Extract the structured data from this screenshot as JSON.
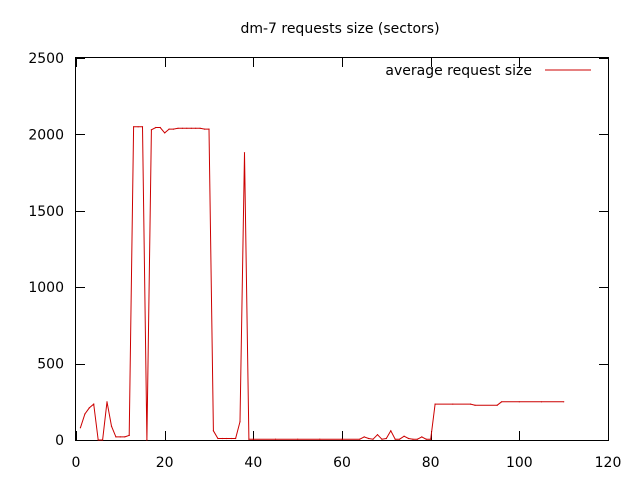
{
  "chart_data": {
    "type": "line",
    "title": "dm-7 requests size (sectors)",
    "xlabel": "",
    "ylabel": "",
    "xlim": [
      0,
      120
    ],
    "ylim": [
      0,
      2500
    ],
    "x_ticks": [
      0,
      20,
      40,
      60,
      80,
      100,
      120
    ],
    "y_ticks": [
      0,
      500,
      1000,
      1500,
      2000,
      2500
    ],
    "grid": false,
    "legend_position": "top-right",
    "series": [
      {
        "name": "average request size",
        "color": "#cc0000",
        "points": [
          [
            1,
            80
          ],
          [
            2,
            170
          ],
          [
            3,
            210
          ],
          [
            4,
            235
          ],
          [
            5,
            0
          ],
          [
            6,
            0
          ],
          [
            7,
            250
          ],
          [
            8,
            90
          ],
          [
            9,
            20
          ],
          [
            10,
            20
          ],
          [
            11,
            20
          ],
          [
            12,
            30
          ],
          [
            13,
            2050
          ],
          [
            14,
            2050
          ],
          [
            15,
            2050
          ],
          [
            16,
            0
          ],
          [
            17,
            2030
          ],
          [
            18,
            2045
          ],
          [
            19,
            2045
          ],
          [
            20,
            2010
          ],
          [
            21,
            2035
          ],
          [
            22,
            2035
          ],
          [
            23,
            2040
          ],
          [
            24,
            2040
          ],
          [
            25,
            2040
          ],
          [
            26,
            2040
          ],
          [
            27,
            2040
          ],
          [
            28,
            2040
          ],
          [
            29,
            2035
          ],
          [
            30,
            2035
          ],
          [
            31,
            60
          ],
          [
            32,
            10
          ],
          [
            33,
            10
          ],
          [
            34,
            10
          ],
          [
            35,
            10
          ],
          [
            36,
            10
          ],
          [
            37,
            120
          ],
          [
            38,
            1880
          ],
          [
            39,
            5
          ],
          [
            40,
            5
          ],
          [
            45,
            5
          ],
          [
            50,
            5
          ],
          [
            55,
            5
          ],
          [
            60,
            5
          ],
          [
            64,
            5
          ],
          [
            65,
            20
          ],
          [
            66,
            10
          ],
          [
            67,
            5
          ],
          [
            68,
            35
          ],
          [
            69,
            5
          ],
          [
            70,
            10
          ],
          [
            71,
            60
          ],
          [
            72,
            5
          ],
          [
            73,
            5
          ],
          [
            74,
            25
          ],
          [
            75,
            10
          ],
          [
            76,
            5
          ],
          [
            77,
            5
          ],
          [
            78,
            20
          ],
          [
            79,
            5
          ],
          [
            80,
            5
          ],
          [
            81,
            235
          ],
          [
            85,
            235
          ],
          [
            89,
            235
          ],
          [
            90,
            228
          ],
          [
            95,
            228
          ],
          [
            96,
            250
          ],
          [
            100,
            250
          ],
          [
            105,
            250
          ],
          [
            110,
            250
          ]
        ]
      }
    ]
  }
}
